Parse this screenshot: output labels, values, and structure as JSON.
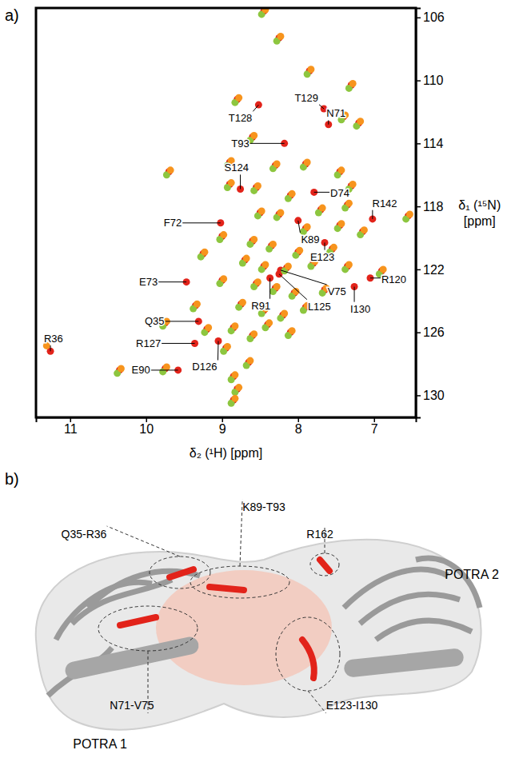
{
  "chart_data": {
    "type": "scatter",
    "panel": "a)",
    "x_label": "δ₂ (¹H) [ppm]",
    "y_label": "δ₁ (¹⁵N) [ppm]",
    "xlim": [
      11.45,
      6.45
    ],
    "ylim": [
      105.4,
      131.4
    ],
    "xticks": [
      11,
      10,
      9,
      8,
      7
    ],
    "yticks": [
      106,
      110,
      114,
      118,
      122,
      126,
      130
    ],
    "marker": "circle",
    "series": [
      {
        "color": "#e2231a",
        "x": [
          7.66,
          8.52,
          7.6,
          8.18,
          8.76,
          7.79,
          7.02,
          9.02,
          8.0,
          7.65,
          7.05,
          9.47,
          7.26,
          8.23,
          8.37,
          8.25,
          9.31,
          9.36,
          9.05,
          9.58,
          11.26,
          8.45,
          8.25,
          7.85,
          7.3,
          8.8,
          7.4,
          7.2,
          8.6,
          8.9,
          8.3,
          7.9,
          7.45,
          9.7,
          8.9,
          8.55,
          7.3,
          8.1,
          7.7,
          7.35,
          6.55,
          8.5,
          8.25,
          7.9,
          7.45,
          7.15,
          9.0,
          8.6,
          8.35,
          8.0,
          7.55,
          9.25,
          8.7,
          8.45,
          8.15,
          7.8,
          7.35,
          6.9,
          9.0,
          8.55,
          8.3,
          8.05,
          7.65,
          9.35,
          8.75,
          8.45,
          8.2,
          7.9,
          9.75,
          9.2,
          8.85,
          8.6,
          8.4,
          10.35,
          9.75,
          8.85,
          8.8,
          8.85,
          8.95,
          8.1,
          8.65
        ],
        "values": [
          111.8,
          111.55,
          112.8,
          114.0,
          116.9,
          117.1,
          118.8,
          119.05,
          118.9,
          120.3,
          122.55,
          122.8,
          123.1,
          122.05,
          122.55,
          122.3,
          125.3,
          126.7,
          126.55,
          128.4,
          127.2,
          105.6,
          107.3,
          109.4,
          110.3,
          111.2,
          112.3,
          112.7,
          113.6,
          115.2,
          115.4,
          115.3,
          115.8,
          115.8,
          116.6,
          116.8,
          116.7,
          117.3,
          118.2,
          117.9,
          118.6,
          118.4,
          118.5,
          119.4,
          119.2,
          119.6,
          119.9,
          120.2,
          120.5,
          120.9,
          120.7,
          121.0,
          121.4,
          121.8,
          121.9,
          121.6,
          121.8,
          122.1,
          122.7,
          122.9,
          123.2,
          123.5,
          123.3,
          124.3,
          124.2,
          124.6,
          124.9,
          124.4,
          125.4,
          125.8,
          125.7,
          126.2,
          125.5,
          128.4,
          128.3,
          128.8,
          129.6,
          130.3,
          127.0,
          126.0,
          127.9
        ]
      },
      {
        "color": "#8dc63f",
        "x": [
          8.48,
          8.28,
          7.88,
          7.33,
          8.83,
          7.43,
          7.23,
          8.63,
          8.93,
          8.33,
          7.93,
          7.48,
          9.73,
          8.93,
          8.58,
          7.33,
          8.13,
          7.73,
          7.38,
          6.58,
          8.53,
          8.28,
          7.93,
          7.48,
          7.18,
          9.03,
          8.63,
          8.38,
          8.03,
          7.58,
          9.28,
          8.73,
          8.48,
          8.18,
          7.83,
          7.38,
          6.93,
          9.03,
          8.58,
          8.33,
          8.08,
          7.68,
          9.38,
          8.78,
          8.48,
          8.23,
          7.93,
          9.78,
          9.23,
          8.88,
          8.63,
          8.43,
          10.38,
          9.78,
          8.88,
          8.83,
          8.88,
          8.98,
          8.13,
          8.68
        ],
        "values": [
          105.8,
          107.5,
          109.6,
          110.5,
          111.4,
          112.5,
          112.9,
          113.8,
          115.4,
          115.6,
          115.5,
          116.0,
          116.0,
          116.8,
          117.0,
          116.9,
          117.5,
          118.4,
          118.1,
          118.8,
          118.6,
          118.7,
          119.6,
          119.4,
          119.8,
          120.1,
          120.4,
          120.7,
          121.1,
          120.9,
          121.2,
          121.6,
          122.0,
          122.1,
          121.8,
          122.0,
          122.3,
          122.9,
          123.1,
          123.4,
          123.7,
          123.5,
          124.5,
          124.4,
          124.8,
          125.1,
          124.6,
          125.6,
          126.0,
          125.9,
          126.4,
          125.7,
          128.6,
          128.5,
          129.0,
          129.8,
          130.5,
          127.2,
          126.2,
          128.1
        ]
      },
      {
        "color": "#f7941d",
        "x": [
          8.43,
          8.23,
          7.83,
          7.28,
          8.78,
          7.38,
          7.18,
          8.58,
          8.88,
          8.28,
          7.88,
          7.43,
          9.68,
          8.88,
          8.53,
          7.28,
          8.08,
          7.68,
          7.33,
          6.53,
          8.48,
          8.23,
          7.88,
          7.43,
          7.13,
          8.98,
          8.58,
          8.33,
          7.98,
          7.53,
          9.23,
          8.68,
          8.43,
          8.13,
          7.78,
          7.33,
          6.88,
          8.98,
          8.53,
          8.28,
          8.03,
          7.63,
          9.33,
          8.73,
          8.43,
          8.18,
          7.88,
          9.73,
          9.18,
          8.83,
          8.58,
          8.38,
          10.33,
          9.73,
          8.83,
          8.78,
          8.83,
          8.93,
          8.08,
          8.63,
          11.31
        ],
        "values": [
          105.5,
          107.2,
          109.3,
          110.2,
          111.1,
          112.2,
          112.6,
          113.5,
          115.1,
          115.3,
          115.2,
          115.7,
          115.7,
          116.5,
          116.7,
          116.6,
          117.2,
          118.1,
          117.8,
          118.5,
          118.3,
          118.4,
          119.3,
          119.1,
          119.5,
          119.8,
          120.1,
          120.4,
          120.8,
          120.6,
          120.9,
          121.3,
          121.7,
          121.8,
          121.5,
          121.7,
          122.0,
          122.6,
          122.8,
          123.1,
          123.4,
          123.2,
          124.2,
          124.1,
          124.5,
          124.8,
          124.3,
          125.3,
          125.7,
          125.6,
          126.1,
          125.4,
          128.3,
          128.2,
          128.7,
          129.5,
          130.2,
          126.9,
          125.9,
          127.8,
          126.85
        ]
      }
    ],
    "annotations": [
      {
        "text": "T129",
        "x": 7.66,
        "y": 111.8,
        "tx": 7.89,
        "ty": 111.1
      },
      {
        "text": "T128",
        "x": 8.52,
        "y": 111.55,
        "tx": 8.76,
        "ty": 112.4
      },
      {
        "text": "N71",
        "x": 7.6,
        "y": 112.8,
        "tx": 7.5,
        "ty": 112.1
      },
      {
        "text": "T93",
        "x": 8.18,
        "y": 114.0,
        "tx": 8.76,
        "ty": 114.0
      },
      {
        "text": "S124",
        "x": 8.76,
        "y": 116.9,
        "tx": 8.81,
        "ty": 115.55
      },
      {
        "text": "D74",
        "x": 7.79,
        "y": 117.1,
        "tx": 7.45,
        "ty": 117.15
      },
      {
        "text": "R142",
        "x": 7.02,
        "y": 118.8,
        "tx": 6.86,
        "ty": 117.8
      },
      {
        "text": "F72",
        "x": 9.02,
        "y": 119.05,
        "tx": 9.65,
        "ty": 119.05
      },
      {
        "text": "K89",
        "x": 8.0,
        "y": 118.9,
        "tx": 7.84,
        "ty": 120.1
      },
      {
        "text": "E123",
        "x": 7.65,
        "y": 120.3,
        "tx": 7.68,
        "ty": 121.2
      },
      {
        "text": "R120",
        "x": 7.05,
        "y": 122.55,
        "tx": 6.74,
        "ty": 122.65
      },
      {
        "text": "E73",
        "x": 9.47,
        "y": 122.8,
        "tx": 9.97,
        "ty": 122.8
      },
      {
        "text": "I130",
        "x": 7.26,
        "y": 123.1,
        "tx": 7.18,
        "ty": 124.5
      },
      {
        "text": "V75",
        "x": 8.23,
        "y": 122.05,
        "tx": 7.49,
        "ty": 123.4
      },
      {
        "text": "R91",
        "x": 8.37,
        "y": 122.55,
        "tx": 8.49,
        "ty": 124.3
      },
      {
        "text": "L125",
        "x": 8.25,
        "y": 122.3,
        "tx": 7.72,
        "ty": 124.35
      },
      {
        "text": "Q35",
        "x": 9.31,
        "y": 125.3,
        "tx": 9.89,
        "ty": 125.3
      },
      {
        "text": "R127",
        "x": 9.36,
        "y": 126.7,
        "tx": 9.97,
        "ty": 126.7
      },
      {
        "text": "D126",
        "x": 9.05,
        "y": 126.55,
        "tx": 9.23,
        "ty": 128.2
      },
      {
        "text": "E90",
        "x": 9.58,
        "y": 128.4,
        "tx": 10.07,
        "ty": 128.4
      },
      {
        "text": "R36",
        "x": 11.26,
        "y": 127.2,
        "tx": 11.22,
        "ty": 126.4
      }
    ]
  },
  "structure": {
    "panel": "b)",
    "domains": [
      "POTRA 1",
      "POTRA 2"
    ],
    "regions": [
      "Q35-R36",
      "K89-T93",
      "R162",
      "N71-V75",
      "E123-I130"
    ]
  }
}
